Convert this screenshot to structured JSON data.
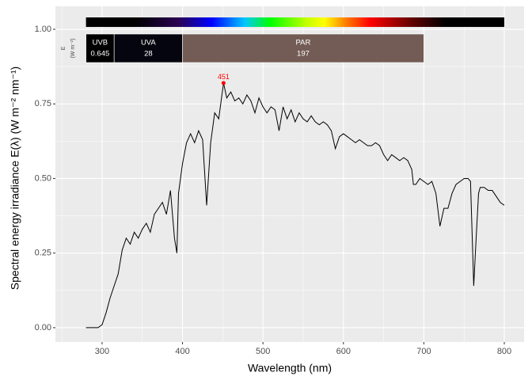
{
  "chart_data": {
    "type": "line",
    "xlabel": "Wavelength (nm)",
    "ylabel": "Spectral  energy  irradiance  E(λ)  (W m⁻² nm⁻¹)",
    "color": "#000000",
    "grid": true,
    "xlim": [
      242,
      824.6
    ],
    "ylim": [
      -0.048,
      1.077
    ],
    "xticks": [
      300,
      400,
      500,
      600,
      700,
      800
    ],
    "yticks": [
      {
        "value": 0,
        "label": "0.00"
      },
      {
        "value": 0.25,
        "label": "0.25"
      },
      {
        "value": 0.5,
        "label": "0.50"
      },
      {
        "value": 0.75,
        "label": "0.75"
      },
      {
        "value": 1,
        "label": "1.00"
      }
    ],
    "x": [
      280,
      285,
      290,
      295,
      300,
      305,
      310,
      315,
      320,
      325,
      330,
      335,
      340,
      345,
      350,
      355,
      360,
      365,
      370,
      375,
      380,
      385,
      390,
      393,
      395,
      400,
      405,
      410,
      415,
      420,
      425,
      430,
      435,
      440,
      445,
      451,
      455,
      460,
      465,
      470,
      475,
      480,
      485,
      490,
      495,
      500,
      505,
      510,
      515,
      520,
      525,
      530,
      535,
      540,
      545,
      550,
      555,
      560,
      565,
      570,
      575,
      580,
      585,
      590,
      595,
      600,
      605,
      610,
      615,
      620,
      625,
      630,
      635,
      640,
      645,
      650,
      655,
      660,
      665,
      670,
      675,
      680,
      685,
      687,
      690,
      695,
      700,
      705,
      710,
      715,
      720,
      725,
      730,
      735,
      740,
      745,
      750,
      755,
      758,
      762,
      765,
      768,
      770,
      775,
      780,
      785,
      790,
      795,
      800
    ],
    "values": [
      0,
      0,
      0,
      0,
      0.01,
      0.05,
      0.1,
      0.14,
      0.18,
      0.26,
      0.3,
      0.28,
      0.32,
      0.3,
      0.33,
      0.35,
      0.32,
      0.38,
      0.4,
      0.42,
      0.38,
      0.46,
      0.3,
      0.25,
      0.45,
      0.55,
      0.62,
      0.65,
      0.62,
      0.66,
      0.63,
      0.41,
      0.62,
      0.72,
      0.7,
      0.82,
      0.77,
      0.79,
      0.76,
      0.77,
      0.75,
      0.78,
      0.76,
      0.72,
      0.77,
      0.74,
      0.72,
      0.74,
      0.73,
      0.66,
      0.74,
      0.7,
      0.73,
      0.69,
      0.72,
      0.7,
      0.69,
      0.71,
      0.69,
      0.68,
      0.69,
      0.68,
      0.66,
      0.6,
      0.64,
      0.65,
      0.64,
      0.63,
      0.62,
      0.63,
      0.62,
      0.61,
      0.61,
      0.62,
      0.61,
      0.58,
      0.56,
      0.58,
      0.57,
      0.56,
      0.57,
      0.56,
      0.53,
      0.48,
      0.48,
      0.5,
      0.49,
      0.48,
      0.49,
      0.45,
      0.34,
      0.4,
      0.4,
      0.45,
      0.48,
      0.49,
      0.5,
      0.5,
      0.49,
      0.14,
      0.3,
      0.45,
      0.47,
      0.47,
      0.46,
      0.46,
      0.44,
      0.42,
      0.41
    ],
    "peak": {
      "x": 451,
      "y": 0.82,
      "color": "#ff0000"
    },
    "band_axis_label": [
      "E",
      "(W m⁻²)"
    ],
    "bands": [
      {
        "name": "UVB",
        "value": 0.645,
        "from": 280,
        "to": 315,
        "color": "#000000"
      },
      {
        "name": "UVA",
        "value": 28,
        "from": 315,
        "to": 400,
        "color": "#05050f"
      },
      {
        "name": "PAR",
        "value": 197,
        "from": 400,
        "to": 700,
        "color": "#735c55"
      }
    ]
  }
}
